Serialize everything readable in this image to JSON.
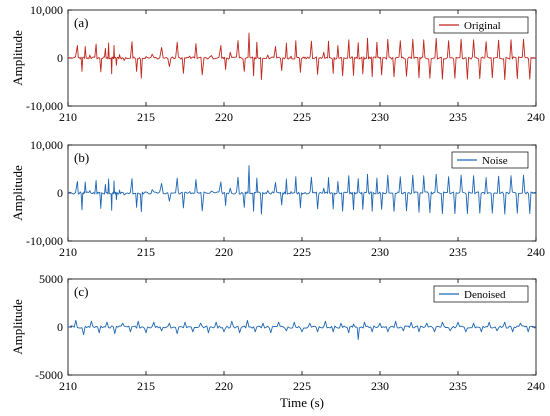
{
  "chart_data": [
    {
      "type": "line",
      "panel_label": "(a)",
      "legend": "Original",
      "color": "#c0281e",
      "ylabel": "Amplitude",
      "xlabel": "",
      "xlim": [
        210,
        240
      ],
      "ylim": [
        -10000,
        10000
      ],
      "x_ticks": [
        210,
        215,
        220,
        225,
        230,
        235,
        240
      ],
      "x_tick_labels": [
        "210",
        "215",
        "220",
        "225",
        "230",
        "235",
        "240"
      ],
      "y_ticks": [
        -10000,
        0,
        10000
      ],
      "y_tick_labels": [
        "-10,000",
        "0",
        "10,000"
      ],
      "legend_position": "top-right",
      "series": [
        {
          "x": [
            210.0,
            210.6,
            210.9,
            211.1,
            211.4,
            211.8,
            212.1,
            212.4,
            212.6,
            212.8,
            212.95,
            213.1,
            213.3,
            213.6,
            214.1,
            214.4,
            214.7,
            215.0,
            215.4,
            216.0,
            216.5,
            217.0,
            217.4,
            217.8,
            218.2,
            218.6,
            219.2,
            219.8,
            220.1,
            220.4,
            220.9,
            221.3,
            221.6,
            221.9,
            222.1,
            222.4,
            222.8,
            223.3,
            223.7,
            224.0,
            224.3,
            224.6,
            224.9,
            225.2,
            225.6,
            226.0,
            226.4,
            226.7,
            227.0,
            227.3,
            227.6,
            228.0,
            228.3,
            228.6,
            228.9,
            229.2,
            229.5,
            229.8,
            230.1,
            230.5,
            230.9,
            231.3,
            231.7,
            232.1,
            232.5,
            232.8,
            233.2,
            233.6,
            234.0,
            234.4,
            234.8,
            235.2,
            235.6,
            236.0,
            236.4,
            236.8,
            237.2,
            237.6,
            238.0,
            238.4,
            238.8,
            239.2,
            239.6,
            240.0
          ],
          "y": [
            0,
            2600,
            -2800,
            2400,
            600,
            2900,
            -2900,
            2000,
            3100,
            -3300,
            2600,
            -1500,
            700,
            -500,
            3400,
            -2800,
            -4200,
            300,
            800,
            2200,
            -1800,
            3300,
            -3200,
            400,
            3000,
            -3500,
            500,
            2600,
            -2400,
            1200,
            3600,
            -2800,
            5200,
            -3700,
            3300,
            -4500,
            600,
            2400,
            -2600,
            3100,
            400,
            3600,
            -3000,
            200,
            3500,
            -3400,
            1200,
            3500,
            -3200,
            2600,
            -3700,
            3800,
            -3600,
            3200,
            -3300,
            4100,
            -3900,
            3300,
            -3500,
            3900,
            -3900,
            3600,
            -3800,
            3900,
            -4100,
            3800,
            -4200,
            4100,
            -4400,
            3600,
            -4200,
            3900,
            -4400,
            3800,
            -4300,
            3400,
            -4100,
            3700,
            -4500,
            3800,
            -4300,
            3900,
            -4400,
            100
          ]
        }
      ]
    },
    {
      "type": "line",
      "panel_label": "(b)",
      "legend": "Noise",
      "color": "#1f67b4",
      "ylabel": "Amplitude",
      "xlabel": "",
      "xlim": [
        210,
        240
      ],
      "ylim": [
        -10000,
        10000
      ],
      "x_ticks": [
        210,
        215,
        220,
        225,
        230,
        235,
        240
      ],
      "x_tick_labels": [
        "210",
        "215",
        "220",
        "225",
        "230",
        "235",
        "240"
      ],
      "y_ticks": [
        -10000,
        0,
        10000
      ],
      "y_tick_labels": [
        "-10,000",
        "0",
        "10,000"
      ],
      "legend_position": "top-right",
      "series": [
        {
          "x": [
            210.0,
            210.6,
            210.9,
            211.1,
            211.4,
            211.8,
            212.1,
            212.4,
            212.6,
            212.8,
            212.95,
            213.1,
            213.3,
            213.6,
            214.1,
            214.4,
            214.7,
            215.0,
            215.4,
            216.0,
            216.5,
            217.0,
            217.4,
            217.8,
            218.2,
            218.6,
            219.2,
            219.8,
            220.1,
            220.4,
            220.9,
            221.3,
            221.6,
            221.9,
            222.1,
            222.4,
            222.8,
            223.3,
            223.7,
            224.0,
            224.3,
            224.6,
            224.9,
            225.2,
            225.6,
            226.0,
            226.4,
            226.7,
            227.0,
            227.3,
            227.6,
            228.0,
            228.3,
            228.6,
            228.9,
            229.2,
            229.5,
            229.8,
            230.1,
            230.5,
            230.9,
            231.3,
            231.7,
            232.1,
            232.5,
            232.8,
            233.2,
            233.6,
            234.0,
            234.4,
            234.8,
            235.2,
            235.6,
            236.0,
            236.4,
            236.8,
            237.2,
            237.6,
            238.0,
            238.4,
            238.8,
            239.2,
            239.6,
            240.0
          ],
          "y": [
            0,
            2400,
            -3500,
            2300,
            500,
            2600,
            -3200,
            1800,
            2900,
            -3600,
            2500,
            -1400,
            600,
            -400,
            3000,
            -3000,
            -3900,
            200,
            700,
            2000,
            -1700,
            3100,
            -3100,
            300,
            2800,
            -3700,
            400,
            2300,
            -2600,
            1000,
            3300,
            -3000,
            5700,
            -3800,
            3100,
            -4400,
            500,
            2200,
            -2500,
            2900,
            300,
            3400,
            -3100,
            100,
            3300,
            -3300,
            1000,
            3200,
            -3300,
            2400,
            -3800,
            3600,
            -3500,
            3000,
            -3400,
            3900,
            -3800,
            3100,
            -3400,
            3700,
            -3800,
            3400,
            -3700,
            3700,
            -4000,
            3600,
            -4100,
            3900,
            -4300,
            3400,
            -4300,
            3700,
            -4300,
            3600,
            -4200,
            3200,
            -4200,
            3500,
            -4400,
            3600,
            -4200,
            3700,
            -4300,
            100
          ]
        }
      ]
    },
    {
      "type": "line",
      "panel_label": "(c)",
      "legend": "Denoised",
      "color": "#1f67b4",
      "ylabel": "Amplitude",
      "xlabel": "Time (s)",
      "xlim": [
        210,
        240
      ],
      "ylim": [
        -5000,
        5000
      ],
      "x_ticks": [
        210,
        215,
        220,
        225,
        230,
        235,
        240
      ],
      "x_tick_labels": [
        "210",
        "215",
        "220",
        "225",
        "230",
        "235",
        "240"
      ],
      "y_ticks": [
        -5000,
        0,
        5000
      ],
      "y_tick_labels": [
        "-5000",
        "0",
        "5000"
      ],
      "legend_position": "top-right",
      "series": [
        {
          "x": [
            210.0,
            210.5,
            211.0,
            211.5,
            212.0,
            212.5,
            213.0,
            213.5,
            214.0,
            214.5,
            215.0,
            215.5,
            216.0,
            216.5,
            217.0,
            217.5,
            218.0,
            218.5,
            219.0,
            219.5,
            220.0,
            220.5,
            221.0,
            221.5,
            222.0,
            222.5,
            223.0,
            223.5,
            224.0,
            224.5,
            225.0,
            225.5,
            226.0,
            226.5,
            227.0,
            227.5,
            228.0,
            228.3,
            228.6,
            229.0,
            229.5,
            230.0,
            230.5,
            231.0,
            231.5,
            232.0,
            232.5,
            233.0,
            233.5,
            234.0,
            234.5,
            235.0,
            235.5,
            236.0,
            236.5,
            237.0,
            237.5,
            238.0,
            238.5,
            239.0,
            239.5,
            240.0
          ],
          "y": [
            0,
            700,
            -800,
            600,
            -600,
            500,
            -700,
            400,
            -500,
            600,
            -600,
            500,
            -400,
            400,
            -700,
            500,
            -500,
            400,
            -600,
            500,
            -500,
            600,
            -600,
            700,
            -500,
            400,
            -600,
            500,
            -400,
            500,
            -500,
            400,
            -500,
            600,
            -500,
            400,
            -600,
            300,
            -1300,
            500,
            -500,
            400,
            -500,
            600,
            -400,
            500,
            -500,
            400,
            -500,
            500,
            -400,
            500,
            -500,
            400,
            -500,
            500,
            -400,
            500,
            -500,
            400,
            -500,
            0
          ]
        }
      ]
    }
  ]
}
